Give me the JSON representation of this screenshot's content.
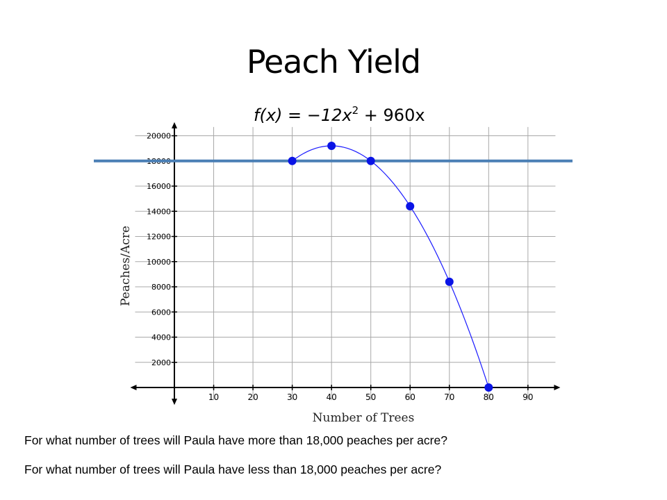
{
  "slide": {
    "title": "Peach Yield",
    "questions": [
      "For what number of trees will Paula have more than 18,000 peaches per acre?",
      "For what number of trees will Paula have less than 18,000 peaches per acre?"
    ]
  },
  "chart_data": {
    "type": "line",
    "equation": {
      "prefix": "f(x) = −12x",
      "exponent": "2",
      "suffix": " + 960x"
    },
    "xlabel": "Number of Trees",
    "ylabel": "Peaches/Acre",
    "xlim": [
      -10,
      97
    ],
    "ylim": [
      -1000,
      20700
    ],
    "x_ticks": [
      10,
      20,
      30,
      40,
      50,
      60,
      70,
      80,
      90
    ],
    "y_ticks": [
      2000,
      4000,
      6000,
      8000,
      10000,
      12000,
      14000,
      16000,
      18000,
      20000
    ],
    "grid": true,
    "curve": {
      "coefficients": {
        "a": -12,
        "b": 960
      },
      "x_range": [
        30,
        80
      ],
      "color": "#1a1aff"
    },
    "points": [
      {
        "x": 30,
        "y": 18000
      },
      {
        "x": 40,
        "y": 19200
      },
      {
        "x": 50,
        "y": 18000
      },
      {
        "x": 60,
        "y": 14400
      },
      {
        "x": 70,
        "y": 8400
      },
      {
        "x": 80,
        "y": 0
      }
    ],
    "point_color": "#0a14e6",
    "reference_line": {
      "y": 18000,
      "color": "#4a7fb5"
    }
  }
}
